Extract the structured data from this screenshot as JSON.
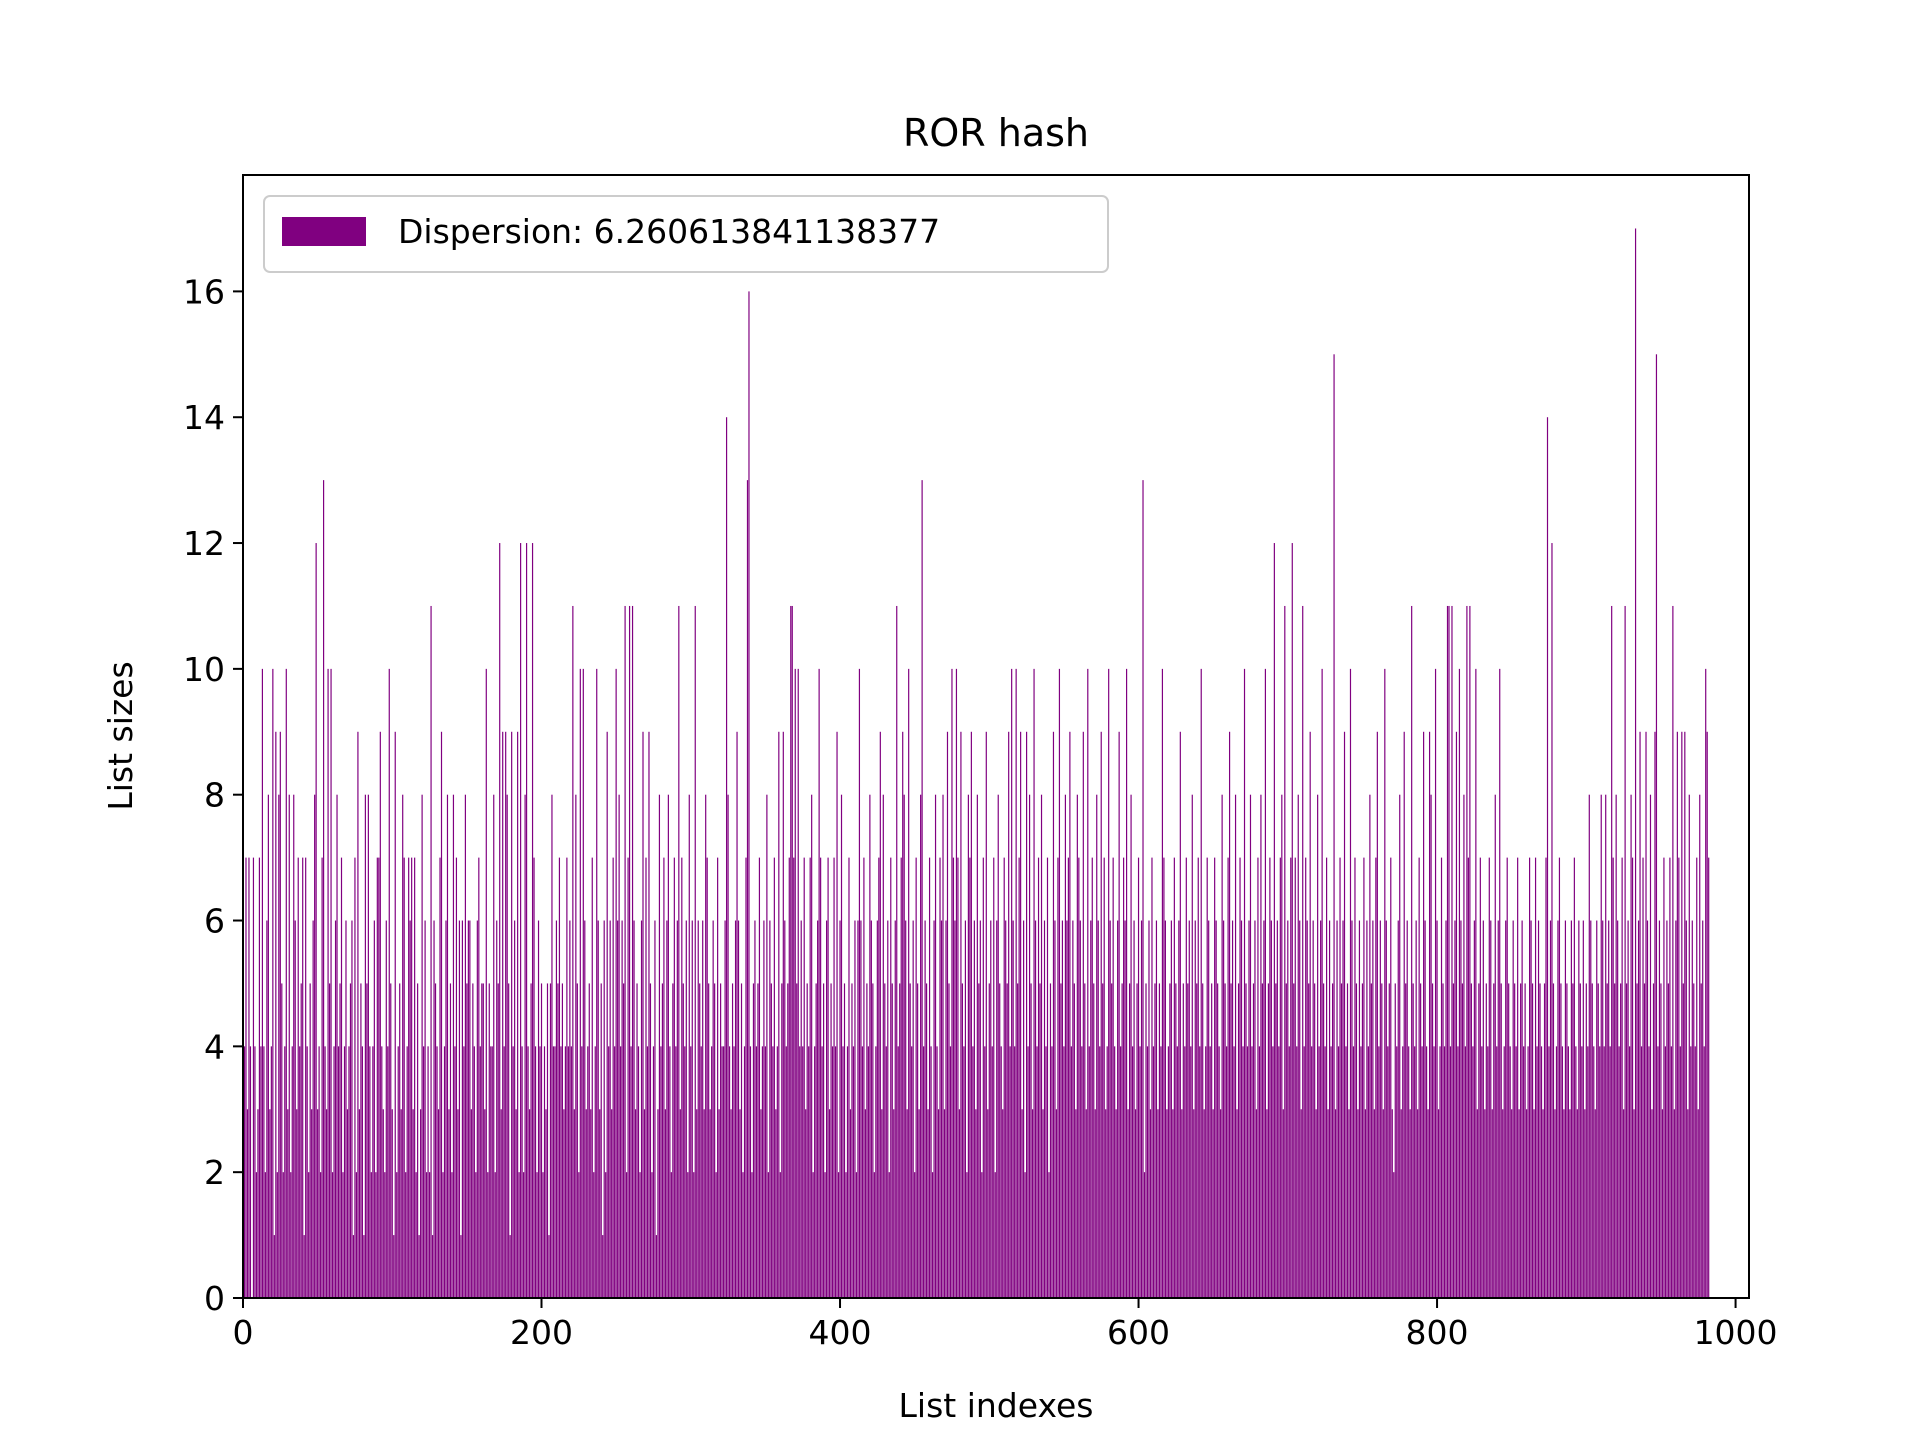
{
  "colors": {
    "bar": "#800080",
    "axis": "#000000",
    "legend_frame": "#cccccc",
    "background": "#ffffff"
  },
  "chart_data": {
    "type": "bar",
    "title": "ROR hash",
    "xlabel": "List indexes",
    "ylabel": "List sizes",
    "xlim": [
      0,
      1009
    ],
    "ylim": [
      0,
      17.85
    ],
    "x_ticks": [
      0,
      200,
      400,
      600,
      800,
      1000
    ],
    "y_ticks": [
      0,
      2,
      4,
      6,
      8,
      10,
      12,
      14,
      16
    ],
    "x_tick_labels": [
      "0",
      "200",
      "400",
      "600",
      "800",
      "1000"
    ],
    "y_tick_labels": [
      "0",
      "2",
      "4",
      "6",
      "8",
      "10",
      "12",
      "14",
      "16"
    ],
    "legend": {
      "position": "upper left",
      "label": "Dispersion: 6.260613841138377"
    },
    "grid": false,
    "bar_width": 0.8,
    "series": [
      {
        "name": "Dispersion: 6.260613841138377",
        "x_start": 0,
        "values": [
          5,
          4,
          7,
          3,
          7,
          4,
          0,
          7,
          4,
          2,
          3,
          7,
          4,
          10,
          4,
          2,
          6,
          8,
          3,
          4,
          10,
          1,
          9,
          2,
          8,
          9,
          5,
          2,
          4,
          10,
          3,
          8,
          2,
          4,
          8,
          6,
          3,
          7,
          4,
          5,
          7,
          1,
          7,
          4,
          2,
          5,
          3,
          6,
          8,
          12,
          3,
          4,
          2,
          7,
          13,
          4,
          3,
          10,
          5,
          10,
          2,
          4,
          6,
          8,
          4,
          5,
          7,
          2,
          4,
          6,
          3,
          4,
          5,
          6,
          1,
          7,
          2,
          9,
          3,
          5,
          4,
          1,
          8,
          5,
          8,
          4,
          2,
          4,
          6,
          2,
          7,
          7,
          9,
          4,
          3,
          2,
          6,
          4,
          10,
          5,
          3,
          1,
          9,
          2,
          4,
          5,
          3,
          8,
          7,
          2,
          4,
          7,
          6,
          7,
          3,
          7,
          2,
          5,
          1,
          3,
          8,
          4,
          6,
          2,
          4,
          2,
          11,
          1,
          6,
          5,
          4,
          3,
          7,
          9,
          2,
          4,
          6,
          8,
          3,
          5,
          2,
          8,
          4,
          7,
          3,
          6,
          1,
          6,
          4,
          8,
          5,
          6,
          6,
          3,
          5,
          4,
          2,
          6,
          7,
          4,
          5,
          5,
          3,
          10,
          2,
          5,
          4,
          4,
          8,
          2,
          6,
          5,
          12,
          3,
          9,
          4,
          9,
          8,
          5,
          1,
          9,
          4,
          6,
          3,
          9,
          2,
          12,
          4,
          2,
          8,
          12,
          4,
          3,
          5,
          12,
          7,
          4,
          2,
          6,
          4,
          5,
          2,
          4,
          3,
          5,
          1,
          5,
          8,
          4,
          4,
          6,
          5,
          7,
          4,
          5,
          3,
          4,
          7,
          4,
          6,
          4,
          11,
          3,
          8,
          5,
          2,
          10,
          4,
          10,
          6,
          3,
          4,
          5,
          3,
          7,
          2,
          4,
          10,
          6,
          3,
          5,
          1,
          6,
          2,
          9,
          4,
          6,
          3,
          7,
          4,
          10,
          6,
          8,
          4,
          6,
          5,
          11,
          2,
          7,
          11,
          4,
          11,
          6,
          3,
          5,
          4,
          2,
          6,
          9,
          3,
          7,
          4,
          9,
          5,
          2,
          4,
          6,
          1,
          3,
          8,
          4,
          5,
          7,
          3,
          6,
          8,
          4,
          2,
          5,
          7,
          4,
          6,
          11,
          3,
          7,
          5,
          4,
          6,
          2,
          8,
          4,
          6,
          2,
          11,
          3,
          6,
          5,
          4,
          6,
          3,
          8,
          7,
          5,
          3,
          4,
          6,
          5,
          2,
          7,
          3,
          5,
          4,
          4,
          6,
          14,
          8,
          4,
          3,
          5,
          4,
          6,
          9,
          6,
          3,
          5,
          2,
          4,
          7,
          13,
          16,
          4,
          2,
          5,
          6,
          4,
          5,
          7,
          3,
          4,
          6,
          4,
          8,
          2,
          6,
          5,
          4,
          7,
          3,
          4,
          9,
          2,
          5,
          9,
          6,
          4,
          5,
          7,
          11,
          11,
          7,
          10,
          5,
          10,
          4,
          6,
          4,
          7,
          3,
          5,
          4,
          7,
          8,
          2,
          4,
          5,
          6,
          10,
          7,
          4,
          5,
          2,
          6,
          7,
          3,
          5,
          4,
          7,
          4,
          9,
          2,
          6,
          8,
          4,
          5,
          2,
          4,
          7,
          3,
          5,
          4,
          6,
          2,
          6,
          10,
          6,
          4,
          7,
          3,
          5,
          4,
          8,
          6,
          5,
          2,
          4,
          6,
          7,
          9,
          3,
          8,
          5,
          4,
          6,
          2,
          7,
          5,
          3,
          6,
          11,
          4,
          5,
          7,
          9,
          8,
          6,
          3,
          10,
          5,
          4,
          6,
          2,
          7,
          5,
          3,
          8,
          13,
          4,
          6,
          5,
          3,
          7,
          4,
          2,
          6,
          8,
          4,
          3,
          7,
          6,
          8,
          3,
          6,
          9,
          5,
          4,
          10,
          7,
          6,
          10,
          7,
          3,
          9,
          5,
          4,
          6,
          2,
          8,
          7,
          9,
          4,
          6,
          3,
          8,
          5,
          6,
          2,
          7,
          4,
          9,
          3,
          5,
          6,
          4,
          7,
          2,
          6,
          8,
          5,
          4,
          3,
          7,
          6,
          5,
          9,
          4,
          10,
          6,
          4,
          10,
          5,
          7,
          9,
          3,
          6,
          2,
          9,
          4,
          8,
          5,
          3,
          10,
          6,
          4,
          7,
          5,
          8,
          3,
          6,
          4,
          7,
          2,
          5,
          4,
          9,
          6,
          3,
          7,
          10,
          5,
          6,
          4,
          8,
          6,
          7,
          9,
          4,
          6,
          5,
          3,
          8,
          7,
          6,
          4,
          9,
          5,
          3,
          10,
          4,
          6,
          7,
          5,
          3,
          8,
          6,
          4,
          9,
          5,
          7,
          3,
          4,
          10,
          6,
          5,
          7,
          4,
          3,
          6,
          9,
          4,
          5,
          7,
          6,
          10,
          3,
          5,
          8,
          4,
          6,
          3,
          5,
          7,
          4,
          6,
          13,
          2,
          5,
          4,
          6,
          3,
          7,
          4,
          5,
          6,
          3,
          5,
          4,
          10,
          7,
          6,
          3,
          4,
          5,
          6,
          3,
          7,
          5,
          4,
          6,
          9,
          3,
          5,
          4,
          7,
          5,
          6,
          4,
          8,
          3,
          6,
          5,
          7,
          4,
          10,
          5,
          3,
          4,
          7,
          6,
          4,
          5,
          3,
          7,
          6,
          5,
          4,
          3,
          8,
          6,
          5,
          4,
          7,
          9,
          5,
          6,
          4,
          8,
          3,
          5,
          7,
          6,
          4,
          10,
          5,
          4,
          6,
          8,
          4,
          5,
          6,
          3,
          7,
          4,
          8,
          5,
          6,
          10,
          3,
          5,
          7,
          6,
          4,
          12,
          5,
          6,
          4,
          7,
          8,
          3,
          11,
          5,
          6,
          4,
          7,
          12,
          5,
          7,
          4,
          8,
          6,
          3,
          11,
          4,
          7,
          6,
          5,
          9,
          4,
          6,
          5,
          3,
          8,
          4,
          6,
          10,
          5,
          4,
          7,
          3,
          6,
          4,
          5,
          15,
          3,
          6,
          4,
          7,
          5,
          6,
          9,
          4,
          5,
          3,
          10,
          6,
          4,
          7,
          5,
          3,
          6,
          4,
          5,
          7,
          3,
          6,
          4,
          8,
          5,
          6,
          3,
          7,
          9,
          4,
          6,
          5,
          3,
          10,
          6,
          4,
          5,
          7,
          3,
          2,
          5,
          4,
          6,
          8,
          3,
          4,
          9,
          5,
          6,
          4,
          3,
          11,
          5,
          4,
          6,
          3,
          7,
          5,
          4,
          9,
          6,
          4,
          3,
          9,
          8,
          5,
          4,
          10,
          6,
          3,
          4,
          7,
          5,
          4,
          6,
          11,
          11,
          4,
          11,
          5,
          6,
          9,
          4,
          10,
          6,
          5,
          8,
          4,
          11,
          7,
          11,
          5,
          4,
          6,
          10,
          3,
          5,
          7,
          4,
          6,
          3,
          5,
          4,
          7,
          6,
          3,
          5,
          8,
          4,
          6,
          10,
          5,
          3,
          4,
          6,
          7,
          5,
          4,
          3,
          6,
          5,
          4,
          7,
          3,
          5,
          6,
          4,
          5,
          3,
          4,
          7,
          6,
          5,
          3,
          7,
          4,
          6,
          5,
          4,
          3,
          5,
          7,
          14,
          4,
          6,
          12,
          5,
          3,
          4,
          6,
          7,
          5,
          4,
          3,
          6,
          5,
          4,
          3,
          6,
          5,
          7,
          4,
          3,
          6,
          5,
          4,
          6,
          3,
          5,
          4,
          8,
          6,
          5,
          4,
          3,
          6,
          5,
          4,
          8,
          6,
          4,
          8,
          5,
          6,
          4,
          11,
          7,
          5,
          8,
          6,
          4,
          5,
          7,
          3,
          11,
          5,
          6,
          4,
          8,
          7,
          3,
          17,
          5,
          6,
          9,
          4,
          7,
          5,
          9,
          6,
          4,
          8,
          3,
          5,
          9,
          15,
          4,
          6,
          5,
          3,
          7,
          4,
          6,
          5,
          7,
          4,
          11,
          3,
          6,
          9,
          7,
          4,
          9,
          5,
          9,
          6,
          3,
          8,
          4,
          6,
          5,
          4,
          7,
          3,
          8,
          5,
          6,
          4,
          10,
          9,
          7
        ]
      }
    ]
  }
}
